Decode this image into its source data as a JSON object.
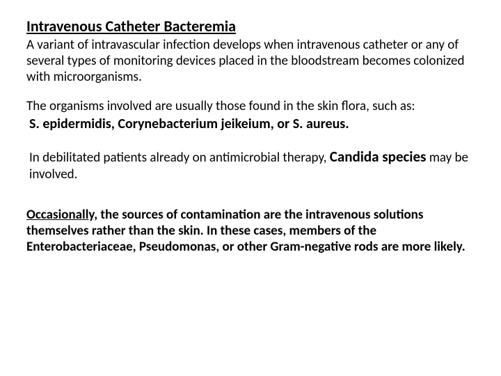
{
  "title": "Intravenous Catheter Bacteremia",
  "para1": "A variant of intravascular infection develops when intravenous catheter or any of several types of monitoring devices placed in the bloodstream becomes colonized with microorganisms.",
  "para2": "The organisms involved are usually those found in the skin flora, such as:",
  "organisms": "S. epidermidis, Corynebacterium jeikeium, or S. aureus.",
  "candida_pre": " In debilitated patients already on antimicrobial therapy, ",
  "candida_strong": "Candida species",
  "candida_post": " may be involved.",
  "final_lead": "Occasionally,",
  "final_rest": " the sources of contamination are the intravenous solutions themselves rather than the skin. In these cases, members of the Enterobacteriaceae, Pseudomonas, or other Gram-negative rods are more likely.",
  "colors": {
    "text": "#000000",
    "background": "#ffffff"
  },
  "typography": {
    "title_fontsize": 22,
    "body_fontsize": 19,
    "organisms_fontsize": 20,
    "candida_strong_fontsize": 21,
    "font_family": "Calibri"
  }
}
